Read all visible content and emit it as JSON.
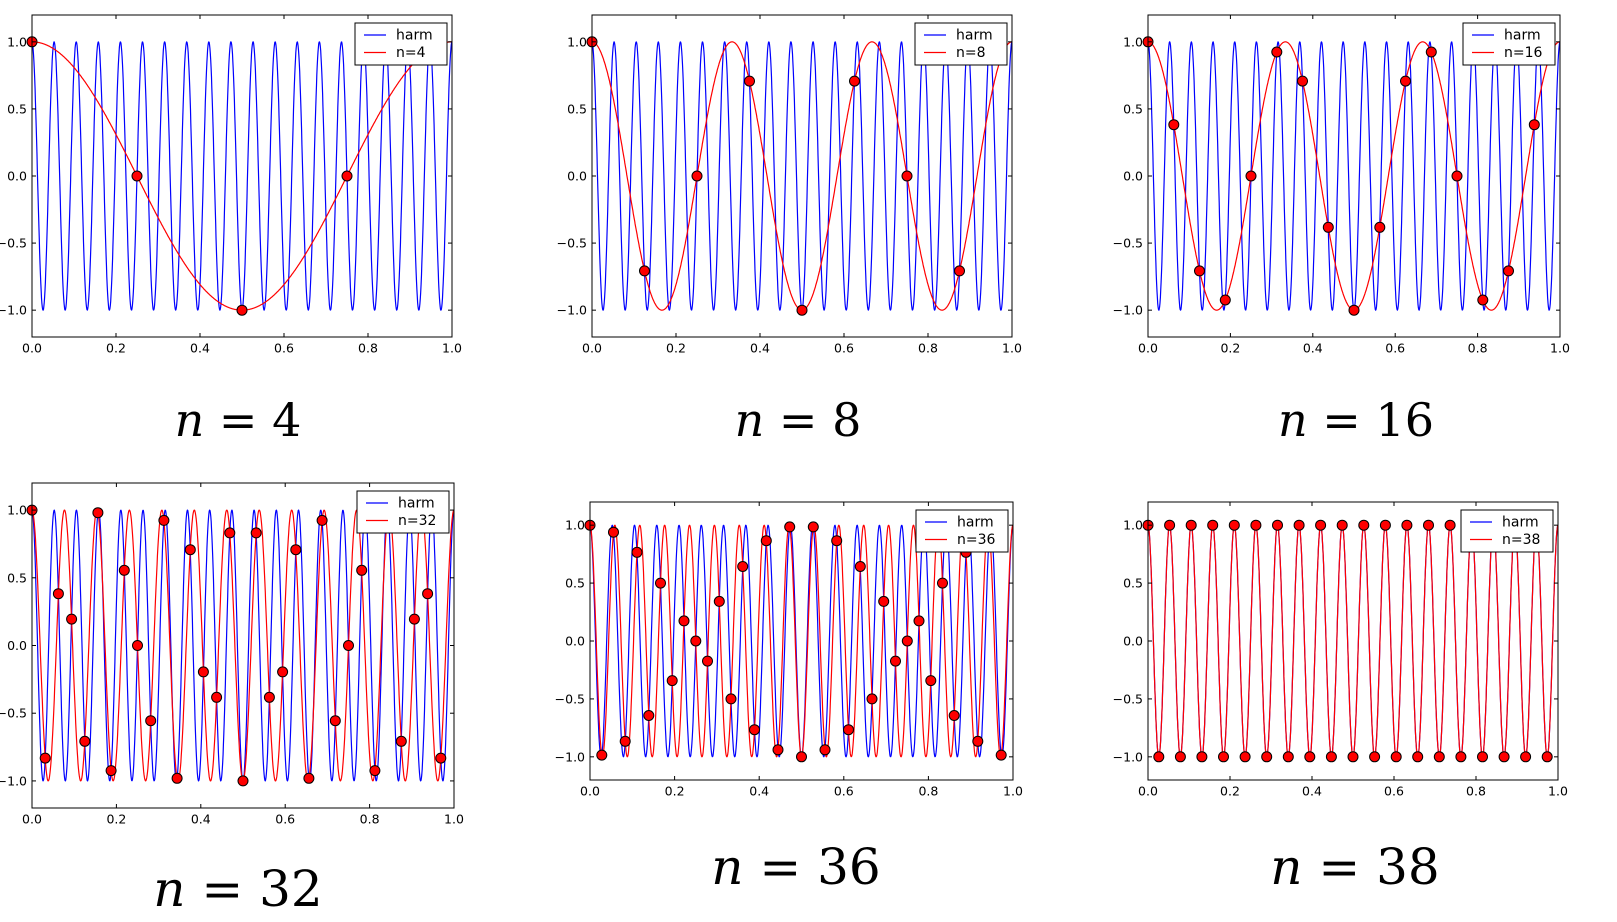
{
  "figure": {
    "background": "#ffffff",
    "frame_color": "#000000",
    "tick_direction": "in",
    "colors": {
      "harm_line": "#0000ff",
      "alias_line": "#ff0000",
      "marker_face": "#ff0000",
      "marker_edge": "#000000",
      "text": "#000000"
    }
  },
  "chart_data": [
    {
      "type": "line",
      "caption": "n = 4",
      "n": 4,
      "waveform": "cosine",
      "legend": [
        "harm",
        "n=4"
      ],
      "legend_position": "upper right",
      "grid": false,
      "xlim": [
        0,
        1
      ],
      "ylim": [
        -1.2,
        1.2
      ],
      "x_ticks": [
        "0.0",
        "0.2",
        "0.4",
        "0.6",
        "0.8",
        "1.0"
      ],
      "y_ticks": [
        "1.0",
        "0.5",
        "0.0",
        "−0.5",
        "−1.0"
      ],
      "series": [
        {
          "name": "harm",
          "color": "#0000ff",
          "frequency": 19
        },
        {
          "name": "n=4",
          "color": "#ff0000",
          "frequency": 1
        }
      ],
      "samples": {
        "x": [
          0,
          0.25,
          0.5,
          0.75
        ],
        "y": [
          1,
          0,
          -1,
          0
        ]
      }
    },
    {
      "type": "line",
      "caption": "n = 8",
      "n": 8,
      "waveform": "cosine",
      "legend": [
        "harm",
        "n=8"
      ],
      "legend_position": "upper right",
      "grid": false,
      "xlim": [
        0,
        1
      ],
      "ylim": [
        -1.2,
        1.2
      ],
      "x_ticks": [
        "0.0",
        "0.2",
        "0.4",
        "0.6",
        "0.8",
        "1.0"
      ],
      "y_ticks": [
        "1.0",
        "0.5",
        "0.0",
        "−0.5",
        "−1.0"
      ],
      "series": [
        {
          "name": "harm",
          "color": "#0000ff",
          "frequency": 19
        },
        {
          "name": "n=8",
          "color": "#ff0000",
          "frequency": 3
        }
      ],
      "samples": {
        "x": [
          0,
          0.125,
          0.25,
          0.375,
          0.5,
          0.625,
          0.75,
          0.875
        ],
        "y": [
          1,
          -0.7071,
          0,
          0.7071,
          -1,
          0.7071,
          0,
          -0.7071
        ]
      }
    },
    {
      "type": "line",
      "caption": "n = 16",
      "n": 16,
      "waveform": "cosine",
      "legend": [
        "harm",
        "n=16"
      ],
      "legend_position": "upper right",
      "grid": false,
      "xlim": [
        0,
        1
      ],
      "ylim": [
        -1.2,
        1.2
      ],
      "x_ticks": [
        "0.0",
        "0.2",
        "0.4",
        "0.6",
        "0.8",
        "1.0"
      ],
      "y_ticks": [
        "1.0",
        "0.5",
        "0.0",
        "−0.5",
        "−1.0"
      ],
      "series": [
        {
          "name": "harm",
          "color": "#0000ff",
          "frequency": 19
        },
        {
          "name": "n=16",
          "color": "#ff0000",
          "frequency": 3
        }
      ],
      "samples": {
        "x": [
          0,
          0.0625,
          0.125,
          0.1875,
          0.25,
          0.3125,
          0.375,
          0.4375,
          0.5,
          0.5625,
          0.625,
          0.6875,
          0.75,
          0.8125,
          0.875,
          0.9375
        ],
        "y": [
          1,
          0.3827,
          -0.7071,
          -0.9239,
          0,
          0.9239,
          0.7071,
          -0.3827,
          -1,
          -0.3827,
          0.7071,
          0.9239,
          0,
          -0.9239,
          -0.7071,
          0.3827
        ]
      }
    },
    {
      "type": "line",
      "caption": "n = 32",
      "n": 32,
      "waveform": "cosine",
      "legend": [
        "harm",
        "n=32"
      ],
      "legend_position": "upper right",
      "grid": false,
      "xlim": [
        0,
        1
      ],
      "ylim": [
        -1.2,
        1.2
      ],
      "x_ticks": [
        "0.0",
        "0.2",
        "0.4",
        "0.6",
        "0.8",
        "1.0"
      ],
      "y_ticks": [
        "1.0",
        "0.5",
        "0.0",
        "−0.5",
        "−1.0"
      ],
      "series": [
        {
          "name": "harm",
          "color": "#0000ff",
          "frequency": 19
        },
        {
          "name": "n=32",
          "color": "#ff0000",
          "frequency": 13
        }
      ],
      "samples": {
        "x": [
          0,
          0.03125,
          0.0625,
          0.09375,
          0.125,
          0.15625,
          0.1875,
          0.21875,
          0.25,
          0.28125,
          0.3125,
          0.34375,
          0.375,
          0.40625,
          0.4375,
          0.46875,
          0.5,
          0.53125,
          0.5625,
          0.59375,
          0.625,
          0.65625,
          0.6875,
          0.71875,
          0.75,
          0.78125,
          0.8125,
          0.84375,
          0.875,
          0.90625,
          0.9375,
          0.96875
        ],
        "y": [
          1,
          -0.8315,
          0.3827,
          0.1951,
          -0.7071,
          0.9808,
          -0.9239,
          0.5556,
          0,
          -0.5556,
          0.9239,
          -0.9808,
          0.7071,
          -0.1951,
          -0.3827,
          0.8315,
          -1,
          0.8315,
          -0.3827,
          -0.1951,
          0.7071,
          -0.9808,
          0.9239,
          -0.5556,
          0,
          0.5556,
          -0.9239,
          0.9808,
          -0.7071,
          0.1951,
          0.3827,
          -0.8315
        ]
      }
    },
    {
      "type": "line",
      "caption": "n = 36",
      "n": 36,
      "waveform": "cosine",
      "legend": [
        "harm",
        "n=36"
      ],
      "legend_position": "upper right",
      "grid": false,
      "xlim": [
        0,
        1
      ],
      "ylim": [
        -1.2,
        1.2
      ],
      "x_ticks": [
        "0.0",
        "0.2",
        "0.4",
        "0.6",
        "0.8",
        "1.0"
      ],
      "y_ticks": [
        "1.0",
        "0.5",
        "0.0",
        "−0.5",
        "−1.0"
      ],
      "series": [
        {
          "name": "harm",
          "color": "#0000ff",
          "frequency": 19
        },
        {
          "name": "n=36",
          "color": "#ff0000",
          "frequency": 17
        }
      ],
      "samples": {
        "x": [
          0,
          0.02778,
          0.05556,
          0.08333,
          0.11111,
          0.13889,
          0.16667,
          0.19444,
          0.22222,
          0.25,
          0.27778,
          0.30556,
          0.33333,
          0.36111,
          0.38889,
          0.41667,
          0.44444,
          0.47222,
          0.5,
          0.52778,
          0.55556,
          0.58333,
          0.61111,
          0.63889,
          0.66667,
          0.69444,
          0.72222,
          0.75,
          0.77778,
          0.80556,
          0.83333,
          0.86111,
          0.88889,
          0.91667,
          0.94444,
          0.97222
        ],
        "y": [
          1,
          -0.9848,
          0.9397,
          -0.866,
          0.766,
          -0.6428,
          0.5,
          -0.342,
          0.1736,
          0,
          -0.1736,
          0.342,
          -0.5,
          0.6428,
          -0.766,
          0.866,
          -0.9397,
          0.9848,
          -1,
          0.9848,
          -0.9397,
          0.866,
          -0.766,
          0.6428,
          -0.5,
          0.342,
          -0.1736,
          0,
          0.1736,
          -0.342,
          0.5,
          -0.6428,
          0.766,
          -0.866,
          0.9397,
          -0.9848
        ]
      }
    },
    {
      "type": "line",
      "caption": "n = 38",
      "n": 38,
      "waveform": "cosine",
      "legend": [
        "harm",
        "n=38"
      ],
      "legend_position": "upper right",
      "grid": false,
      "xlim": [
        0,
        1
      ],
      "ylim": [
        -1.2,
        1.2
      ],
      "x_ticks": [
        "0.0",
        "0.2",
        "0.4",
        "0.6",
        "0.8",
        "1.0"
      ],
      "y_ticks": [
        "1.0",
        "0.5",
        "0.0",
        "−0.5",
        "−1.0"
      ],
      "series": [
        {
          "name": "harm",
          "color": "#0000ff",
          "frequency": 19
        },
        {
          "name": "n=38",
          "color": "#ff0000",
          "frequency": 19
        }
      ],
      "samples": {
        "x": [
          0,
          0.02632,
          0.05263,
          0.07895,
          0.10526,
          0.13158,
          0.15789,
          0.18421,
          0.21053,
          0.23684,
          0.26316,
          0.28947,
          0.31579,
          0.34211,
          0.36842,
          0.39474,
          0.42105,
          0.44737,
          0.47368,
          0.5,
          0.52632,
          0.55263,
          0.57895,
          0.60526,
          0.63158,
          0.65789,
          0.68421,
          0.71053,
          0.73684,
          0.76316,
          0.78947,
          0.81579,
          0.84211,
          0.86842,
          0.89474,
          0.92105,
          0.94737,
          0.97368
        ],
        "y": [
          1,
          -1,
          1,
          -1,
          1,
          -1,
          1,
          -1,
          1,
          -1,
          1,
          -1,
          1,
          -1,
          1,
          -1,
          1,
          -1,
          1,
          -1,
          1,
          -1,
          1,
          -1,
          1,
          -1,
          1,
          -1,
          1,
          -1,
          1,
          -1,
          1,
          -1,
          1,
          -1,
          1,
          -1
        ]
      }
    }
  ]
}
